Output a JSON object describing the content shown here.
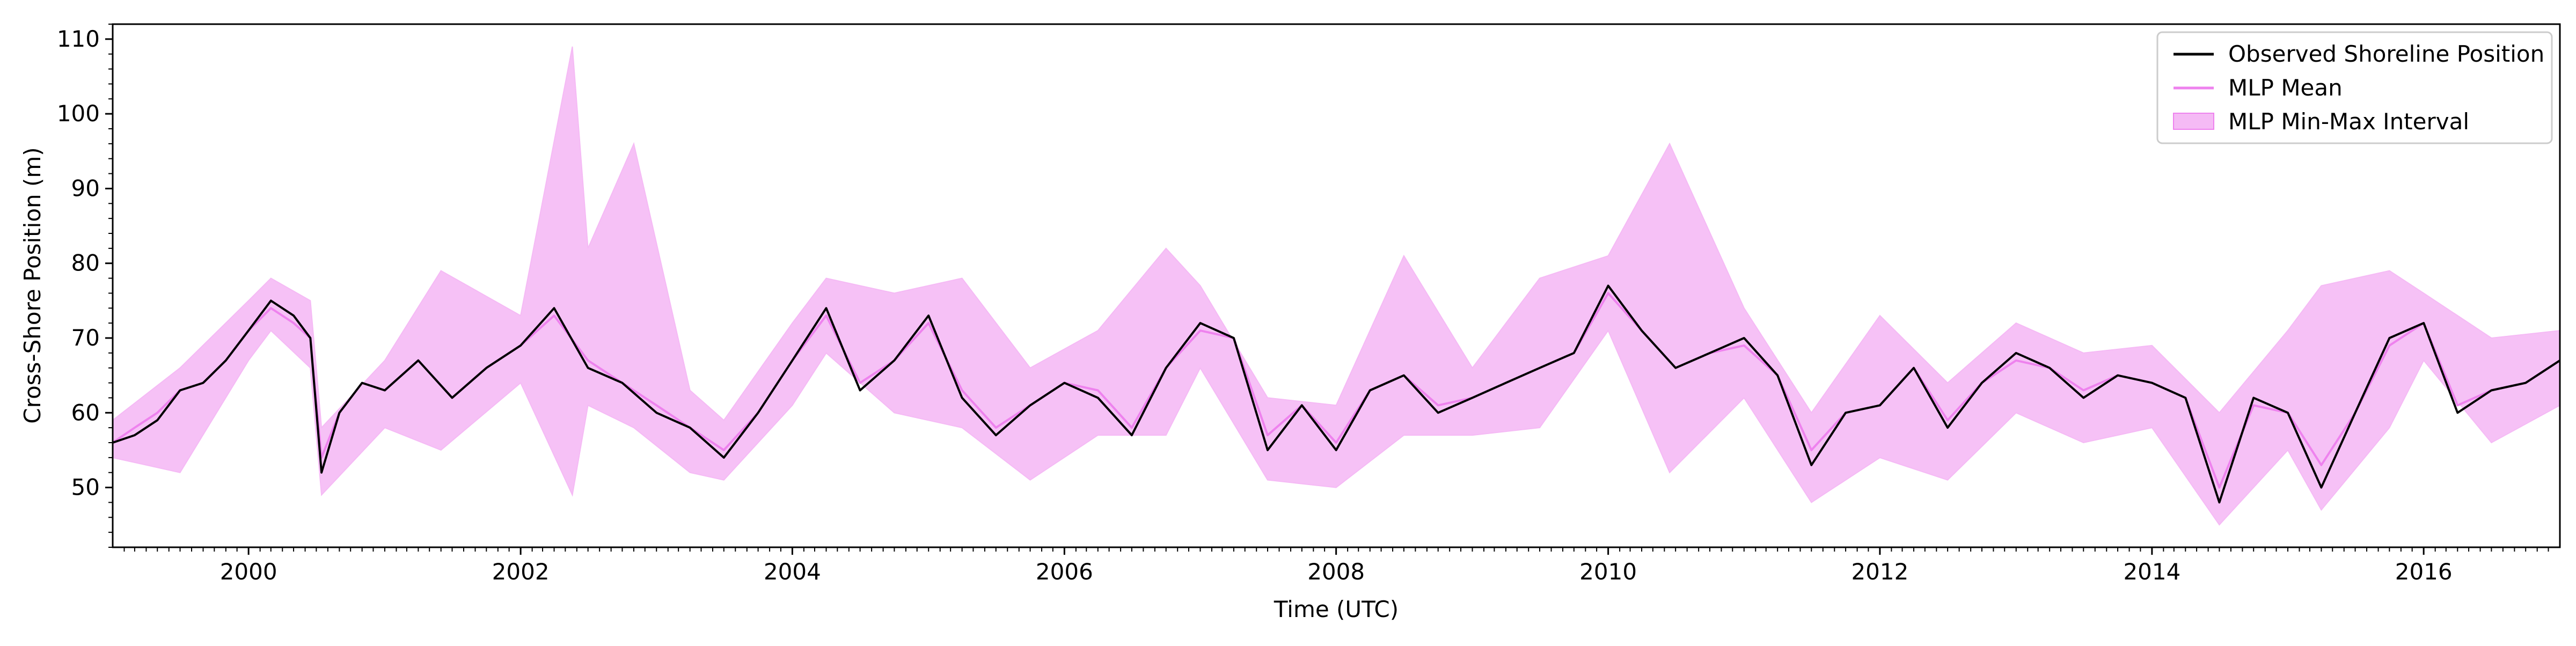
{
  "chart_data": {
    "type": "line",
    "title": "",
    "xlabel": "Time (UTC)",
    "ylabel": "Cross-Shore Position (m)",
    "xlim": [
      "1999-01-01",
      "2017-01-01"
    ],
    "ylim": [
      42,
      112
    ],
    "x_ticks": [
      "2000",
      "2002",
      "2004",
      "2006",
      "2008",
      "2010",
      "2012",
      "2014",
      "2016"
    ],
    "y_ticks": [
      50,
      60,
      70,
      80,
      90,
      100,
      110
    ],
    "grid": false,
    "legend_position": "top-right",
    "legend": [
      {
        "label": "Observed Shoreline Position",
        "color": "#000000",
        "kind": "line"
      },
      {
        "label": "MLP Mean",
        "color": "#ee82ee",
        "kind": "line"
      },
      {
        "label": "MLP Min-Max Interval",
        "color": "#f5baf5",
        "kind": "band"
      }
    ],
    "series": [
      {
        "name": "Observed Shoreline Position",
        "color": "#000000",
        "points": [
          [
            "1999-01-01",
            56
          ],
          [
            "1999-03-01",
            57
          ],
          [
            "1999-05-01",
            59
          ],
          [
            "1999-07-01",
            63
          ],
          [
            "1999-09-01",
            64
          ],
          [
            "1999-11-01",
            67
          ],
          [
            "2000-01-01",
            71
          ],
          [
            "2000-03-01",
            75
          ],
          [
            "2000-05-01",
            73
          ],
          [
            "2000-06-15",
            70
          ],
          [
            "2000-07-15",
            52
          ],
          [
            "2000-09-01",
            60
          ],
          [
            "2000-11-01",
            64
          ],
          [
            "2001-01-01",
            63
          ],
          [
            "2001-04-01",
            67
          ],
          [
            "2001-07-01",
            62
          ],
          [
            "2001-10-01",
            66
          ],
          [
            "2002-01-01",
            69
          ],
          [
            "2002-04-01",
            74
          ],
          [
            "2002-07-01",
            66
          ],
          [
            "2002-10-01",
            64
          ],
          [
            "2003-01-01",
            60
          ],
          [
            "2003-04-01",
            58
          ],
          [
            "2003-07-01",
            54
          ],
          [
            "2003-10-01",
            60
          ],
          [
            "2004-01-01",
            67
          ],
          [
            "2004-04-01",
            74
          ],
          [
            "2004-07-01",
            63
          ],
          [
            "2004-10-01",
            67
          ],
          [
            "2005-01-01",
            73
          ],
          [
            "2005-04-01",
            62
          ],
          [
            "2005-07-01",
            57
          ],
          [
            "2005-10-01",
            61
          ],
          [
            "2006-01-01",
            64
          ],
          [
            "2006-04-01",
            62
          ],
          [
            "2006-07-01",
            57
          ],
          [
            "2006-10-01",
            66
          ],
          [
            "2007-01-01",
            72
          ],
          [
            "2007-04-01",
            70
          ],
          [
            "2007-07-01",
            55
          ],
          [
            "2007-10-01",
            61
          ],
          [
            "2008-01-01",
            55
          ],
          [
            "2008-04-01",
            63
          ],
          [
            "2008-07-01",
            65
          ],
          [
            "2008-10-01",
            60
          ],
          [
            "2009-01-01",
            62
          ],
          [
            "2009-04-01",
            64
          ],
          [
            "2009-07-01",
            66
          ],
          [
            "2009-10-01",
            68
          ],
          [
            "2010-01-01",
            77
          ],
          [
            "2010-04-01",
            71
          ],
          [
            "2010-07-01",
            66
          ],
          [
            "2010-10-01",
            68
          ],
          [
            "2011-01-01",
            70
          ],
          [
            "2011-04-01",
            65
          ],
          [
            "2011-07-01",
            53
          ],
          [
            "2011-10-01",
            60
          ],
          [
            "2012-01-01",
            61
          ],
          [
            "2012-04-01",
            66
          ],
          [
            "2012-07-01",
            58
          ],
          [
            "2012-10-01",
            64
          ],
          [
            "2013-01-01",
            68
          ],
          [
            "2013-04-01",
            66
          ],
          [
            "2013-07-01",
            62
          ],
          [
            "2013-10-01",
            65
          ],
          [
            "2014-01-01",
            64
          ],
          [
            "2014-04-01",
            62
          ],
          [
            "2014-07-01",
            48
          ],
          [
            "2014-10-01",
            62
          ],
          [
            "2015-01-01",
            60
          ],
          [
            "2015-04-01",
            50
          ],
          [
            "2015-07-01",
            60
          ],
          [
            "2015-10-01",
            70
          ],
          [
            "2016-01-01",
            72
          ],
          [
            "2016-04-01",
            60
          ],
          [
            "2016-07-01",
            63
          ],
          [
            "2016-10-01",
            64
          ],
          [
            "2017-01-01",
            67
          ]
        ]
      },
      {
        "name": "MLP Mean",
        "color": "#ee82ee",
        "points": [
          [
            "1999-01-01",
            56
          ],
          [
            "1999-03-01",
            58
          ],
          [
            "1999-05-01",
            60
          ],
          [
            "1999-07-01",
            63
          ],
          [
            "1999-09-01",
            64
          ],
          [
            "1999-11-01",
            67
          ],
          [
            "2000-01-01",
            71
          ],
          [
            "2000-03-01",
            74
          ],
          [
            "2000-05-01",
            72
          ],
          [
            "2000-06-15",
            70
          ],
          [
            "2000-07-15",
            54
          ],
          [
            "2000-09-01",
            60
          ],
          [
            "2000-11-01",
            64
          ],
          [
            "2001-01-01",
            63
          ],
          [
            "2001-04-01",
            67
          ],
          [
            "2001-07-01",
            62
          ],
          [
            "2001-10-01",
            66
          ],
          [
            "2002-01-01",
            69
          ],
          [
            "2002-04-01",
            73
          ],
          [
            "2002-07-01",
            67
          ],
          [
            "2002-10-01",
            64
          ],
          [
            "2003-01-01",
            61
          ],
          [
            "2003-04-01",
            58
          ],
          [
            "2003-07-01",
            55
          ],
          [
            "2003-10-01",
            60
          ],
          [
            "2004-01-01",
            67
          ],
          [
            "2004-04-01",
            73
          ],
          [
            "2004-07-01",
            64
          ],
          [
            "2004-10-01",
            67
          ],
          [
            "2005-01-01",
            72
          ],
          [
            "2005-04-01",
            63
          ],
          [
            "2005-07-01",
            58
          ],
          [
            "2005-10-01",
            61
          ],
          [
            "2006-01-01",
            64
          ],
          [
            "2006-04-01",
            63
          ],
          [
            "2006-07-01",
            58
          ],
          [
            "2006-10-01",
            66
          ],
          [
            "2007-01-01",
            71
          ],
          [
            "2007-04-01",
            70
          ],
          [
            "2007-07-01",
            57
          ],
          [
            "2007-10-01",
            61
          ],
          [
            "2008-01-01",
            56
          ],
          [
            "2008-04-01",
            63
          ],
          [
            "2008-07-01",
            65
          ],
          [
            "2008-10-01",
            61
          ],
          [
            "2009-01-01",
            62
          ],
          [
            "2009-04-01",
            64
          ],
          [
            "2009-07-01",
            66
          ],
          [
            "2009-10-01",
            68
          ],
          [
            "2010-01-01",
            76
          ],
          [
            "2010-04-01",
            71
          ],
          [
            "2010-07-01",
            66
          ],
          [
            "2010-10-01",
            68
          ],
          [
            "2011-01-01",
            69
          ],
          [
            "2011-04-01",
            65
          ],
          [
            "2011-07-01",
            55
          ],
          [
            "2011-10-01",
            60
          ],
          [
            "2012-01-01",
            61
          ],
          [
            "2012-04-01",
            66
          ],
          [
            "2012-07-01",
            59
          ],
          [
            "2012-10-01",
            64
          ],
          [
            "2013-01-01",
            67
          ],
          [
            "2013-04-01",
            66
          ],
          [
            "2013-07-01",
            63
          ],
          [
            "2013-10-01",
            65
          ],
          [
            "2014-01-01",
            64
          ],
          [
            "2014-04-01",
            62
          ],
          [
            "2014-07-01",
            50
          ],
          [
            "2014-10-01",
            61
          ],
          [
            "2015-01-01",
            60
          ],
          [
            "2015-04-01",
            53
          ],
          [
            "2015-07-01",
            60
          ],
          [
            "2015-10-01",
            69
          ],
          [
            "2016-01-01",
            72
          ],
          [
            "2016-04-01",
            61
          ],
          [
            "2016-07-01",
            63
          ],
          [
            "2016-10-01",
            64
          ],
          [
            "2017-01-01",
            67
          ]
        ]
      },
      {
        "name": "MLP Min-Max Interval",
        "color": "#f5baf5",
        "points_upper": [
          [
            "1999-01-01",
            59
          ],
          [
            "1999-07-01",
            66
          ],
          [
            "2000-01-01",
            75
          ],
          [
            "2000-03-01",
            78
          ],
          [
            "2000-06-15",
            75
          ],
          [
            "2000-07-15",
            58
          ],
          [
            "2001-01-01",
            67
          ],
          [
            "2001-06-01",
            79
          ],
          [
            "2002-01-01",
            73
          ],
          [
            "2002-05-20",
            109
          ],
          [
            "2002-07-01",
            82
          ],
          [
            "2002-11-01",
            96
          ],
          [
            "2003-04-01",
            63
          ],
          [
            "2003-07-01",
            59
          ],
          [
            "2004-01-01",
            72
          ],
          [
            "2004-04-01",
            78
          ],
          [
            "2004-10-01",
            76
          ],
          [
            "2005-04-01",
            78
          ],
          [
            "2005-10-01",
            66
          ],
          [
            "2006-04-01",
            71
          ],
          [
            "2006-10-01",
            82
          ],
          [
            "2007-01-01",
            77
          ],
          [
            "2007-07-01",
            62
          ],
          [
            "2008-01-01",
            61
          ],
          [
            "2008-07-01",
            81
          ],
          [
            "2009-01-01",
            66
          ],
          [
            "2009-07-01",
            78
          ],
          [
            "2010-01-01",
            81
          ],
          [
            "2010-06-15",
            96
          ],
          [
            "2011-01-01",
            74
          ],
          [
            "2011-07-01",
            60
          ],
          [
            "2012-01-01",
            73
          ],
          [
            "2012-07-01",
            64
          ],
          [
            "2013-01-01",
            72
          ],
          [
            "2013-07-01",
            68
          ],
          [
            "2014-01-01",
            69
          ],
          [
            "2014-07-01",
            60
          ],
          [
            "2015-01-01",
            71
          ],
          [
            "2015-04-01",
            77
          ],
          [
            "2015-10-01",
            79
          ],
          [
            "2016-01-01",
            76
          ],
          [
            "2016-07-01",
            70
          ],
          [
            "2017-01-01",
            71
          ]
        ],
        "points_lower": [
          [
            "1999-01-01",
            54
          ],
          [
            "1999-07-01",
            52
          ],
          [
            "2000-01-01",
            67
          ],
          [
            "2000-03-01",
            71
          ],
          [
            "2000-06-15",
            66
          ],
          [
            "2000-07-15",
            49
          ],
          [
            "2001-01-01",
            58
          ],
          [
            "2001-06-01",
            55
          ],
          [
            "2002-01-01",
            64
          ],
          [
            "2002-05-20",
            49
          ],
          [
            "2002-07-01",
            61
          ],
          [
            "2002-11-01",
            58
          ],
          [
            "2003-04-01",
            52
          ],
          [
            "2003-07-01",
            51
          ],
          [
            "2004-01-01",
            61
          ],
          [
            "2004-04-01",
            68
          ],
          [
            "2004-10-01",
            60
          ],
          [
            "2005-04-01",
            58
          ],
          [
            "2005-10-01",
            51
          ],
          [
            "2006-04-01",
            57
          ],
          [
            "2006-10-01",
            57
          ],
          [
            "2007-01-01",
            66
          ],
          [
            "2007-07-01",
            51
          ],
          [
            "2008-01-01",
            50
          ],
          [
            "2008-07-01",
            57
          ],
          [
            "2009-01-01",
            57
          ],
          [
            "2009-07-01",
            58
          ],
          [
            "2010-01-01",
            71
          ],
          [
            "2010-06-15",
            52
          ],
          [
            "2011-01-01",
            62
          ],
          [
            "2011-07-01",
            48
          ],
          [
            "2012-01-01",
            54
          ],
          [
            "2012-07-01",
            51
          ],
          [
            "2013-01-01",
            60
          ],
          [
            "2013-07-01",
            56
          ],
          [
            "2014-01-01",
            58
          ],
          [
            "2014-07-01",
            45
          ],
          [
            "2015-01-01",
            55
          ],
          [
            "2015-04-01",
            47
          ],
          [
            "2015-10-01",
            58
          ],
          [
            "2016-01-01",
            67
          ],
          [
            "2016-07-01",
            56
          ],
          [
            "2017-01-01",
            61
          ]
        ]
      }
    ]
  }
}
